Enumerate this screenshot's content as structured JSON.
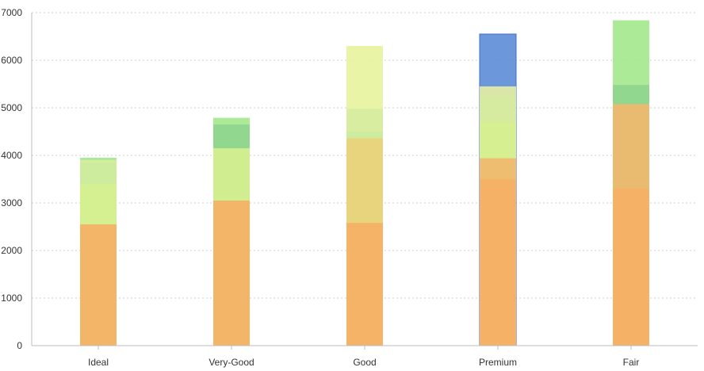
{
  "chart_data": {
    "type": "bar",
    "stacked": false,
    "overlapping": true,
    "categories": [
      "Ideal",
      "Very-Good",
      "Good",
      "Premium",
      "Fair"
    ],
    "ylim": [
      0,
      7000
    ],
    "yticks": [
      0,
      1000,
      2000,
      3000,
      4000,
      5000,
      6000,
      7000
    ],
    "grid": "horizontal-dotted",
    "legend": "none",
    "layers": [
      {
        "color": "#a6e88f",
        "values": [
          3950,
          4790,
          0,
          0,
          6840
        ]
      },
      {
        "color": "#e8f3a0",
        "values": [
          0,
          0,
          6300,
          0,
          0
        ]
      },
      {
        "color": "#5f8fd8",
        "values": [
          0,
          0,
          0,
          6550,
          0
        ]
      },
      {
        "color": "#e3eca5",
        "values": [
          0,
          0,
          0,
          5450,
          0
        ]
      },
      {
        "color": "#d6ec9e",
        "values": [
          3900,
          0,
          4980,
          5250,
          0
        ]
      },
      {
        "color": "#8ed58f",
        "values": [
          0,
          4650,
          0,
          0,
          5480
        ]
      },
      {
        "color": "#ccec9e",
        "values": [
          3850,
          0,
          4500,
          0,
          0
        ]
      },
      {
        "color": "#d6f08f",
        "values": [
          3400,
          4150,
          0,
          4700,
          0
        ]
      },
      {
        "color": "#e9d178",
        "values": [
          0,
          0,
          4360,
          0,
          0
        ]
      },
      {
        "color": "#f0b86e",
        "values": [
          0,
          0,
          0,
          3940,
          5080
        ]
      },
      {
        "color": "#f5b064",
        "values": [
          2550,
          3050,
          2580,
          3500,
          3300
        ]
      }
    ]
  }
}
